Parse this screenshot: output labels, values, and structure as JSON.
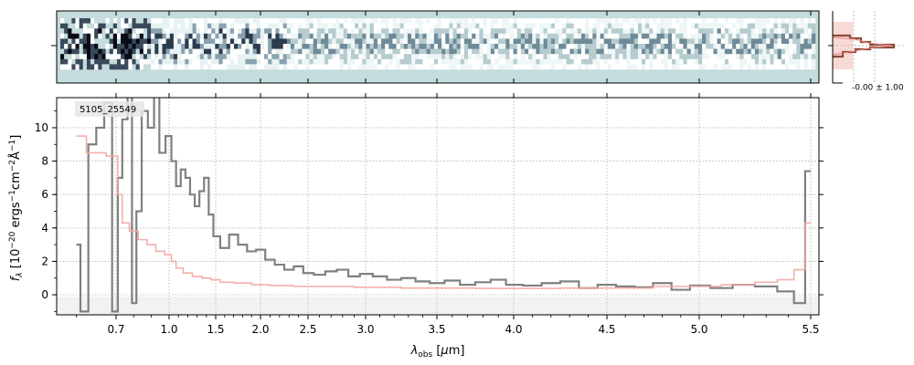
{
  "chart_data": [
    {
      "panel": "2d-spectrum",
      "type": "heatmap",
      "background_color": "#c4dcdc",
      "colormap": "bone_r"
    },
    {
      "panel": "1d-spectrum",
      "type": "line",
      "label": "5105_25549",
      "xlabel": "λobs [μm]",
      "ylabel": "fλ [10⁻²⁰ ergs⁻¹cm⁻²Å⁻¹]",
      "x_tick_labels": [
        "0.7",
        "1.0",
        "1.5",
        "2.0",
        "2.5",
        "3.0",
        "3.5",
        "4.0",
        "4.5",
        "5.0",
        "5.5"
      ],
      "x_tick_values": [
        0.7,
        1.0,
        1.5,
        2.0,
        2.5,
        3.0,
        3.5,
        4.0,
        4.5,
        5.0,
        5.5
      ],
      "y_tick_labels": [
        "0",
        "2",
        "4",
        "6",
        "8",
        "10"
      ],
      "y_tick_values": [
        0,
        2,
        4,
        6,
        8,
        10
      ],
      "xlim": [
        0.55,
        5.55
      ],
      "ylim": [
        -1.2,
        11.8
      ],
      "x_scale": "nonlinear (wavelength-sampled, compressed at long wavelengths)",
      "grid": true,
      "series": [
        {
          "role": "data",
          "color": "#808080",
          "x": [
            0.6,
            0.62,
            0.64,
            0.66,
            0.68,
            0.7,
            0.72,
            0.75,
            0.78,
            0.8,
            0.83,
            0.86,
            0.9,
            0.93,
            0.96,
            1.0,
            1.05,
            1.1,
            1.15,
            1.2,
            1.25,
            1.3,
            1.35,
            1.4,
            1.45,
            1.5,
            1.6,
            1.7,
            1.8,
            1.9,
            2.0,
            2.1,
            2.2,
            2.3,
            2.4,
            2.5,
            2.6,
            2.7,
            2.8,
            2.9,
            3.0,
            3.1,
            3.2,
            3.3,
            3.4,
            3.5,
            3.6,
            3.7,
            3.8,
            3.9,
            4.0,
            4.1,
            4.2,
            4.3,
            4.4,
            4.5,
            4.6,
            4.7,
            4.8,
            4.9,
            5.0,
            5.1,
            5.2,
            5.3,
            5.4,
            5.45,
            5.5
          ],
          "y": [
            3,
            -1,
            9,
            10,
            11.5,
            -1,
            7,
            10.5,
            12,
            -0.5,
            5,
            11,
            10,
            12,
            8.5,
            9.5,
            8,
            6.5,
            7.5,
            7,
            6,
            5.3,
            6.2,
            7,
            4.8,
            3.5,
            2.8,
            3.6,
            3.0,
            2.6,
            2.7,
            2.1,
            1.8,
            1.5,
            1.7,
            1.3,
            1.2,
            1.4,
            1.5,
            1.1,
            1.25,
            1.1,
            0.9,
            1.0,
            0.8,
            0.7,
            0.85,
            0.6,
            0.75,
            0.9,
            0.6,
            0.55,
            0.7,
            0.8,
            0.4,
            0.6,
            0.5,
            0.45,
            0.7,
            0.3,
            0.55,
            0.4,
            0.6,
            0.5,
            0.2,
            -0.5,
            7.4
          ]
        },
        {
          "role": "model",
          "color": "#f4a6a0",
          "x": [
            0.6,
            0.65,
            0.7,
            0.72,
            0.75,
            0.8,
            0.85,
            0.9,
            0.95,
            1.0,
            1.05,
            1.1,
            1.2,
            1.3,
            1.4,
            1.5,
            1.6,
            1.8,
            2.0,
            2.2,
            2.5,
            2.8,
            3.0,
            3.5,
            4.0,
            4.5,
            5.0,
            5.2,
            5.3,
            5.4,
            5.45,
            5.5
          ],
          "y": [
            9.5,
            8.5,
            8.3,
            6.0,
            4.3,
            3.8,
            3.3,
            3.0,
            2.6,
            2.4,
            2.0,
            1.6,
            1.3,
            1.1,
            1.0,
            0.9,
            0.75,
            0.7,
            0.6,
            0.55,
            0.5,
            0.5,
            0.45,
            0.4,
            0.38,
            0.4,
            0.5,
            0.6,
            0.75,
            0.9,
            1.5,
            4.3
          ]
        }
      ]
    },
    {
      "panel": "spatial-profile",
      "type": "line",
      "annotation": "-0.00 ± 1.00",
      "profile_color": "#8b4a3a",
      "fill_color": "#f8d0c8"
    }
  ]
}
